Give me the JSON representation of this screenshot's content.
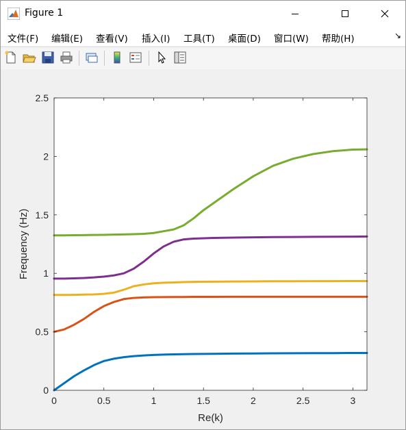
{
  "window": {
    "title": "Figure 1"
  },
  "menu": [
    {
      "label": "文件(F)"
    },
    {
      "label": "编辑(E)"
    },
    {
      "label": "查看(V)"
    },
    {
      "label": "插入(I)"
    },
    {
      "label": "工具(T)"
    },
    {
      "label": "桌面(D)"
    },
    {
      "label": "窗口(W)"
    },
    {
      "label": "帮助(H)"
    }
  ],
  "menu_overflow_icon": "chevron-right-icon",
  "toolbar": [
    "new-figure-icon",
    "open-file-icon",
    "save-icon",
    "print-icon",
    "link-plot-icon",
    "colorbar-icon",
    "legend-icon",
    "pointer-icon",
    "property-inspector-icon"
  ],
  "chart_data": {
    "type": "line",
    "title": "",
    "xlabel": "Re(k)",
    "ylabel": "Frequency (Hz)",
    "xlim": [
      0,
      3.1416
    ],
    "ylim": [
      0,
      2.5
    ],
    "xticks": [
      "0",
      "0.5",
      "1",
      "1.5",
      "2",
      "2.5",
      "3"
    ],
    "yticks": [
      "0",
      "0.5",
      "1",
      "1.5",
      "2",
      "2.5"
    ],
    "grid": false,
    "x": [
      0,
      0.1,
      0.2,
      0.3,
      0.4,
      0.5,
      0.6,
      0.7,
      0.8,
      0.9,
      1.0,
      1.1,
      1.2,
      1.3,
      1.4,
      1.5,
      1.6,
      1.8,
      2.0,
      2.2,
      2.4,
      2.6,
      2.8,
      3.0,
      3.1416
    ],
    "series": [
      {
        "color": "#0072BD",
        "values": [
          0,
          0.06,
          0.12,
          0.17,
          0.215,
          0.25,
          0.27,
          0.283,
          0.292,
          0.298,
          0.302,
          0.305,
          0.307,
          0.309,
          0.31,
          0.311,
          0.312,
          0.314,
          0.315,
          0.316,
          0.317,
          0.318,
          0.318,
          0.319,
          0.319
        ]
      },
      {
        "color": "#D95319",
        "values": [
          0.5,
          0.52,
          0.56,
          0.61,
          0.67,
          0.72,
          0.755,
          0.78,
          0.79,
          0.794,
          0.796,
          0.797,
          0.798,
          0.798,
          0.799,
          0.799,
          0.799,
          0.8,
          0.8,
          0.8,
          0.8,
          0.8,
          0.8,
          0.8,
          0.8
        ]
      },
      {
        "color": "#EDB120",
        "values": [
          0.815,
          0.815,
          0.816,
          0.818,
          0.82,
          0.825,
          0.835,
          0.86,
          0.89,
          0.905,
          0.915,
          0.92,
          0.922,
          0.925,
          0.927,
          0.928,
          0.929,
          0.93,
          0.931,
          0.932,
          0.932,
          0.933,
          0.933,
          0.934,
          0.934
        ]
      },
      {
        "color": "#7E2F8E",
        "values": [
          0.955,
          0.955,
          0.957,
          0.96,
          0.965,
          0.972,
          0.982,
          1.0,
          1.04,
          1.1,
          1.17,
          1.23,
          1.27,
          1.29,
          1.297,
          1.3,
          1.303,
          1.306,
          1.308,
          1.31,
          1.311,
          1.312,
          1.313,
          1.314,
          1.315
        ]
      },
      {
        "color": "#77AC30",
        "values": [
          1.325,
          1.325,
          1.326,
          1.327,
          1.328,
          1.329,
          1.331,
          1.333,
          1.335,
          1.338,
          1.345,
          1.36,
          1.375,
          1.41,
          1.47,
          1.54,
          1.6,
          1.72,
          1.83,
          1.92,
          1.98,
          2.02,
          2.045,
          2.058,
          2.06
        ]
      }
    ]
  }
}
